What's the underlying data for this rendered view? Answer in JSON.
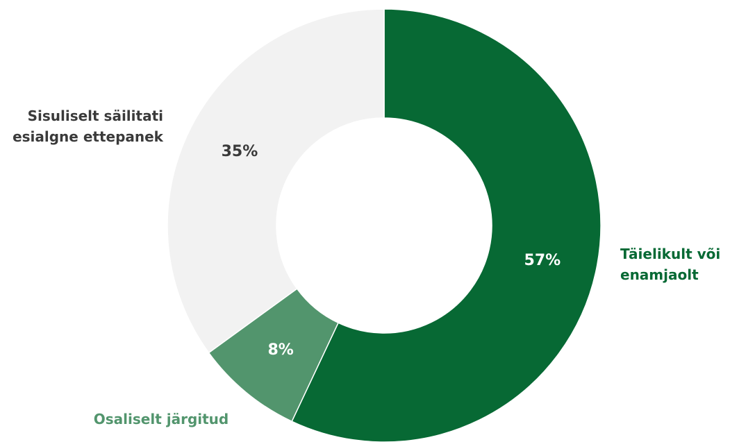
{
  "chart_data": {
    "type": "pie",
    "categories": [
      "Täielikult või\nenamjaolt",
      "Osaliselt järgitud",
      "Sisuliselt säilitati\nesialgne ettepanek"
    ],
    "values": [
      57,
      8,
      35
    ],
    "value_labels": [
      "57%",
      "8%",
      "35%"
    ],
    "colors": [
      "#076934",
      "#52956d",
      "#f2f2f2"
    ],
    "label_colors": [
      "#076934",
      "#52956d",
      "#3a3a3a"
    ],
    "value_label_colors": [
      "#ffffff",
      "#ffffff",
      "#3a3a3a"
    ],
    "donut": true
  }
}
